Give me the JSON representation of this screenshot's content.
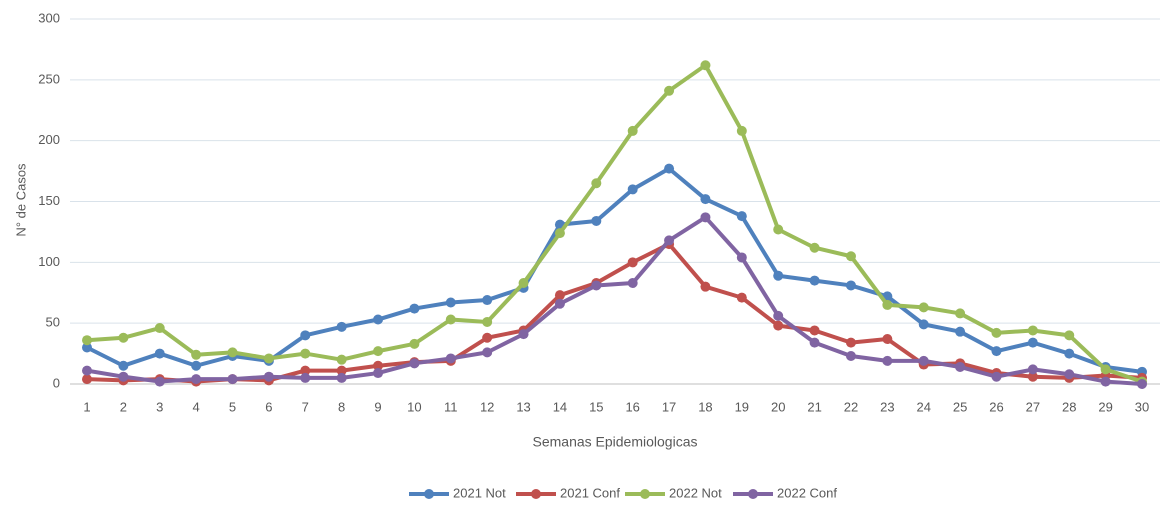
{
  "chart_data": {
    "type": "line",
    "y_label": "N° de Casos",
    "x_label": "Semanas Epidemiologicas",
    "categories": [
      "1",
      "2",
      "3",
      "4",
      "5",
      "6",
      "7",
      "8",
      "9",
      "10",
      "11",
      "12",
      "13",
      "14",
      "15",
      "16",
      "17",
      "18",
      "19",
      "20",
      "21",
      "22",
      "23",
      "24",
      "25",
      "26",
      "27",
      "28",
      "29",
      "30"
    ],
    "ylim": [
      0,
      300
    ],
    "yticks": [
      0,
      50,
      100,
      150,
      200,
      250,
      300
    ],
    "grid": true,
    "legend": "bottom",
    "series": [
      {
        "name": "2021 Not",
        "color": "#4f81bd",
        "values": [
          30,
          15,
          25,
          15,
          23,
          19,
          40,
          47,
          53,
          62,
          67,
          69,
          79,
          131,
          134,
          160,
          177,
          152,
          138,
          89,
          85,
          81,
          72,
          49,
          43,
          27,
          34,
          25,
          14,
          10
        ]
      },
      {
        "name": "2021 Conf",
        "color": "#c0504d",
        "values": [
          4,
          3,
          4,
          2,
          4,
          3,
          11,
          11,
          15,
          18,
          19,
          38,
          44,
          73,
          83,
          100,
          115,
          80,
          71,
          48,
          44,
          34,
          37,
          16,
          17,
          9,
          6,
          5,
          7,
          5
        ]
      },
      {
        "name": "2022 Not",
        "color": "#9bbb59",
        "values": [
          36,
          38,
          46,
          24,
          26,
          21,
          25,
          20,
          27,
          33,
          53,
          51,
          83,
          124,
          165,
          208,
          241,
          262,
          208,
          127,
          112,
          105,
          65,
          63,
          58,
          42,
          44,
          40,
          12,
          2
        ]
      },
      {
        "name": "2022 Conf",
        "color": "#8064a2",
        "values": [
          11,
          6,
          2,
          4,
          4,
          6,
          5,
          5,
          9,
          17,
          21,
          26,
          41,
          66,
          81,
          83,
          118,
          137,
          104,
          56,
          34,
          23,
          19,
          19,
          14,
          6,
          12,
          8,
          2,
          0
        ]
      }
    ]
  }
}
